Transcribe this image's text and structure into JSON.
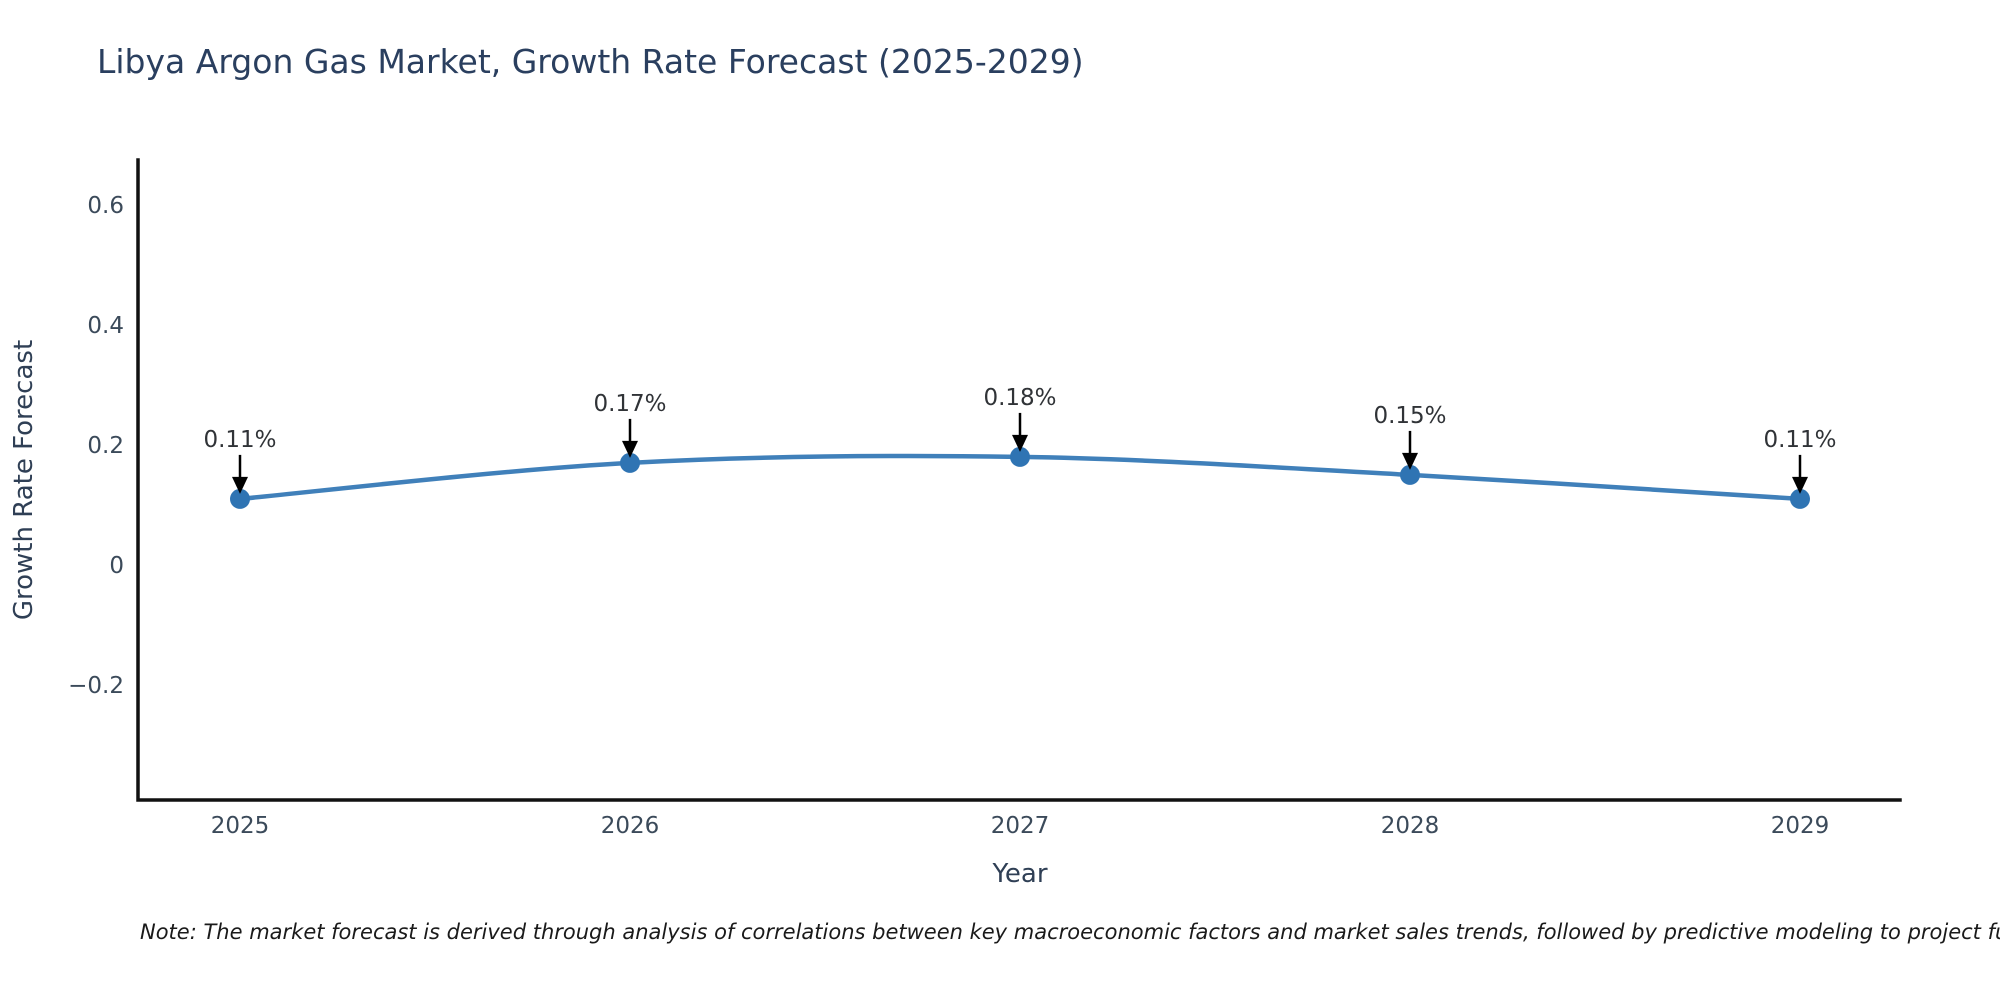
{
  "title": "Libya Argon Gas Market, Growth Rate Forecast (2025-2029)",
  "note": "Note: The market forecast is derived through analysis of correlations between key macroeconomic factors and market sales trends, followed by predictive modeling to project future sales",
  "colors": {
    "background": "#ffffff",
    "title": "#2a3f5f",
    "tick": "#3b4a5a",
    "axis_label": "#2f3f55",
    "axis_line": "#111111",
    "line": "#4080ba",
    "marker": "#2f74b3",
    "annotation_text": "#303337",
    "arrow": "#000000"
  },
  "chart_data": {
    "type": "line",
    "title": "Libya Argon Gas Market, Growth Rate Forecast (2025-2029)",
    "x": [
      "2025",
      "2026",
      "2027",
      "2028",
      "2029"
    ],
    "values": [
      0.11,
      0.17,
      0.18,
      0.15,
      0.11
    ],
    "point_labels": [
      "0.11%",
      "0.17%",
      "0.18%",
      "0.15%",
      "0.11%"
    ],
    "xlabel": "Year",
    "ylabel": "Growth Rate Forecast",
    "yticks": [
      {
        "value": -0.2,
        "label": "−0.2"
      },
      {
        "value": 0,
        "label": "0"
      },
      {
        "value": 0.2,
        "label": "0.2"
      },
      {
        "value": 0.4,
        "label": "0.4"
      },
      {
        "value": 0.6,
        "label": "0.6"
      }
    ],
    "ylim": [
      -0.392,
      0.675
    ],
    "grid": false,
    "legend": false,
    "line_shape": "spline",
    "annotation_style": "down-arrow"
  }
}
